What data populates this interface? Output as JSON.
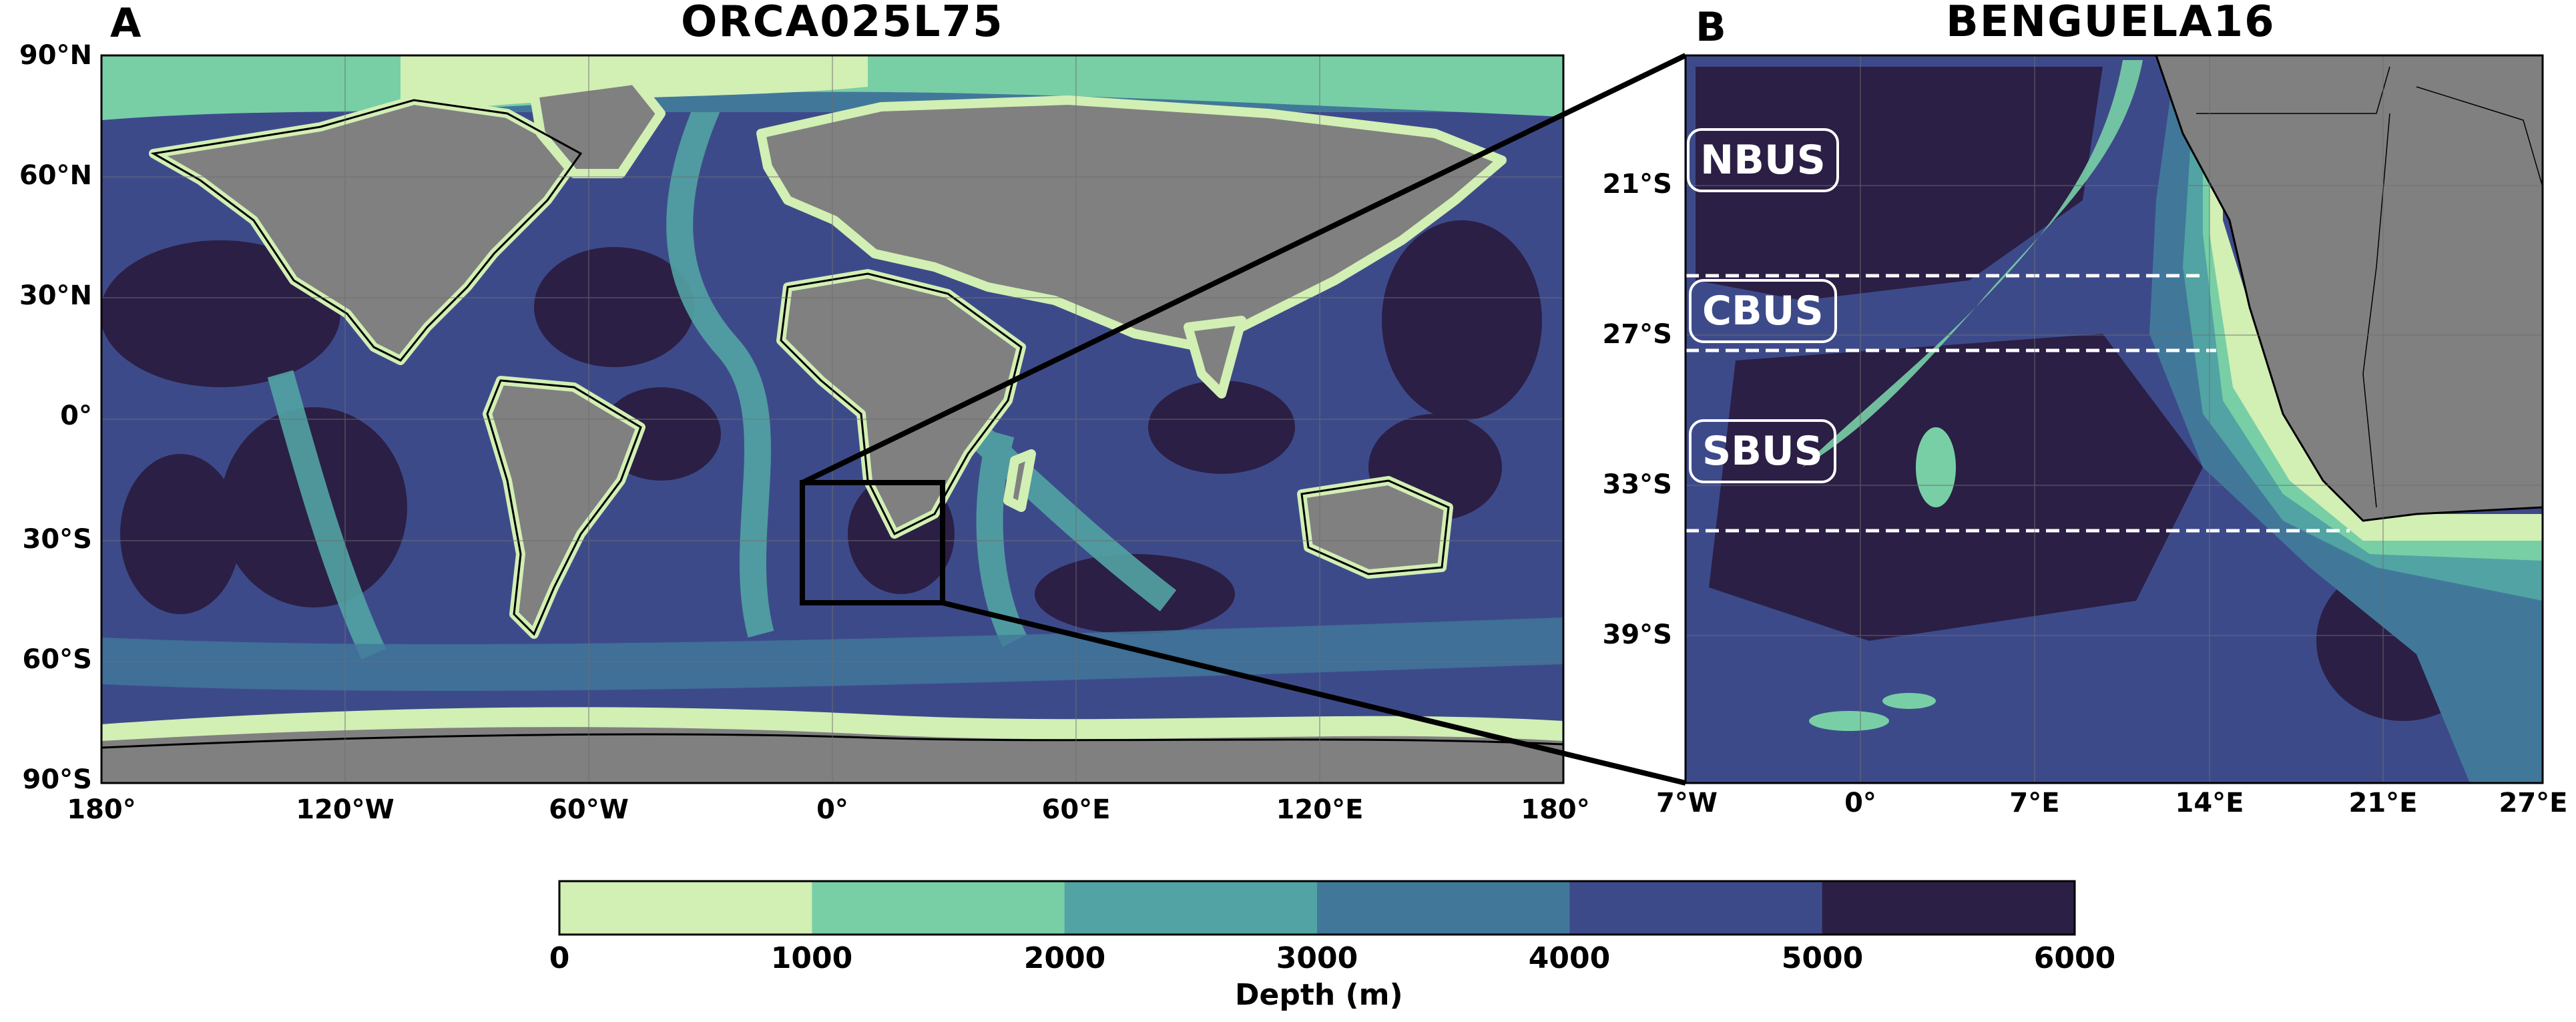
{
  "panel_a": {
    "letter": "A",
    "title": "ORCA025L75",
    "lat_labels": [
      "90°N",
      "60°N",
      "30°N",
      "0°",
      "30°S",
      "60°S",
      "90°S"
    ],
    "lon_labels": [
      "180°",
      "120°W",
      "60°W",
      "0°",
      "60°E",
      "120°E",
      "180°"
    ],
    "box_label_aria": "Benguela region inset",
    "lat_range": [
      -90,
      90
    ],
    "lon_range": [
      -180,
      180
    ]
  },
  "panel_b": {
    "letter": "B",
    "title": "BENGUELA16",
    "lat_labels": [
      "21°S",
      "27°S",
      "33°S",
      "39°S"
    ],
    "lon_labels": [
      "7°W",
      "0°",
      "7°E",
      "14°E",
      "21°E",
      "27°E"
    ],
    "regions": [
      "NBUS",
      "CBUS",
      "SBUS"
    ]
  },
  "colorbar": {
    "label": "Depth (m)",
    "ticks": [
      "0",
      "1000",
      "2000",
      "3000",
      "4000",
      "5000",
      "6000"
    ],
    "colors": [
      "#d2efb4",
      "#78cfa6",
      "#52a3a3",
      "#41789a",
      "#3d4a8a",
      "#2b1f45"
    ]
  },
  "map_colors": {
    "land": "#808080",
    "shelf": "#d2efb4",
    "slope1": "#78cfa6",
    "slope2": "#52a3a3",
    "mid": "#41789a",
    "deep": "#3d4a8a",
    "abyss": "#2b1f45"
  }
}
